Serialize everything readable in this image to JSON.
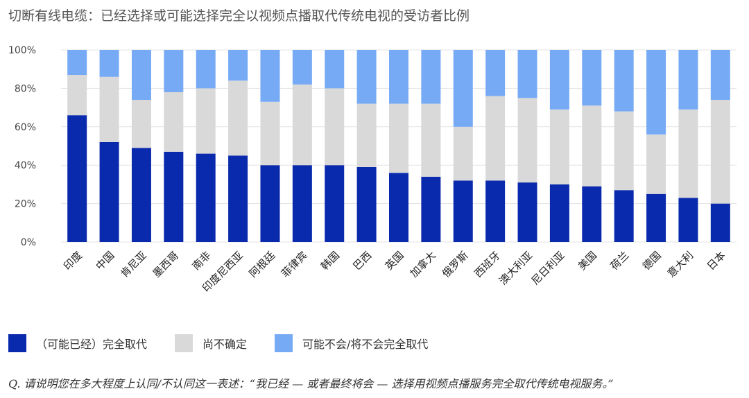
{
  "title": "切断有线电缆：已经选择或可能选择完全以视频点播取代传统电视的受访者比例",
  "question": "Q. 请说明您在多大程度上认同/不认同这一表述：“我已经 — 或者最终将会 — 选择用视频点播服务完全取代传统电视服务。”",
  "colors": {
    "replaced": "#0a2aad",
    "unsure": "#d9d9d9",
    "not_replace": "#76aaf5"
  },
  "legend": [
    {
      "key": "replaced",
      "label": "（可能已经）完全取代"
    },
    {
      "key": "unsure",
      "label": "尚不确定"
    },
    {
      "key": "not_replace",
      "label": "可能不会/将不会完全取代"
    }
  ],
  "chart_data": {
    "type": "bar",
    "stacked": true,
    "title": "切断有线电缆：已经选择或可能选择完全以视频点播取代传统电视的受访者比例",
    "categories": [
      "印度",
      "中国",
      "肯尼亚",
      "墨西哥",
      "南非",
      "印度尼西亚",
      "阿根廷",
      "菲律宾",
      "韩国",
      "巴西",
      "英国",
      "加拿大",
      "俄罗斯",
      "西班牙",
      "澳大利亚",
      "尼日利亚",
      "美国",
      "荷兰",
      "德国",
      "意大利",
      "日本"
    ],
    "series": [
      {
        "name": "（可能已经）完全取代",
        "values": [
          66,
          52,
          49,
          47,
          46,
          45,
          40,
          40,
          40,
          39,
          36,
          34,
          32,
          32,
          31,
          30,
          29,
          27,
          25,
          23,
          20
        ]
      },
      {
        "name": "尚不确定",
        "values": [
          21,
          34,
          25,
          31,
          34,
          39,
          33,
          42,
          40,
          33,
          36,
          38,
          28,
          44,
          44,
          39,
          42,
          41,
          31,
          46,
          54
        ]
      },
      {
        "name": "可能不会/将不会完全取代",
        "values": [
          13,
          14,
          26,
          22,
          20,
          16,
          27,
          18,
          20,
          28,
          28,
          28,
          40,
          24,
          25,
          31,
          29,
          32,
          44,
          31,
          26
        ]
      }
    ],
    "y_ticks": [
      "0%",
      "20%",
      "40%",
      "60%",
      "80%",
      "100%"
    ],
    "ylim": [
      0,
      100
    ],
    "legend_position": "bottom-left"
  }
}
